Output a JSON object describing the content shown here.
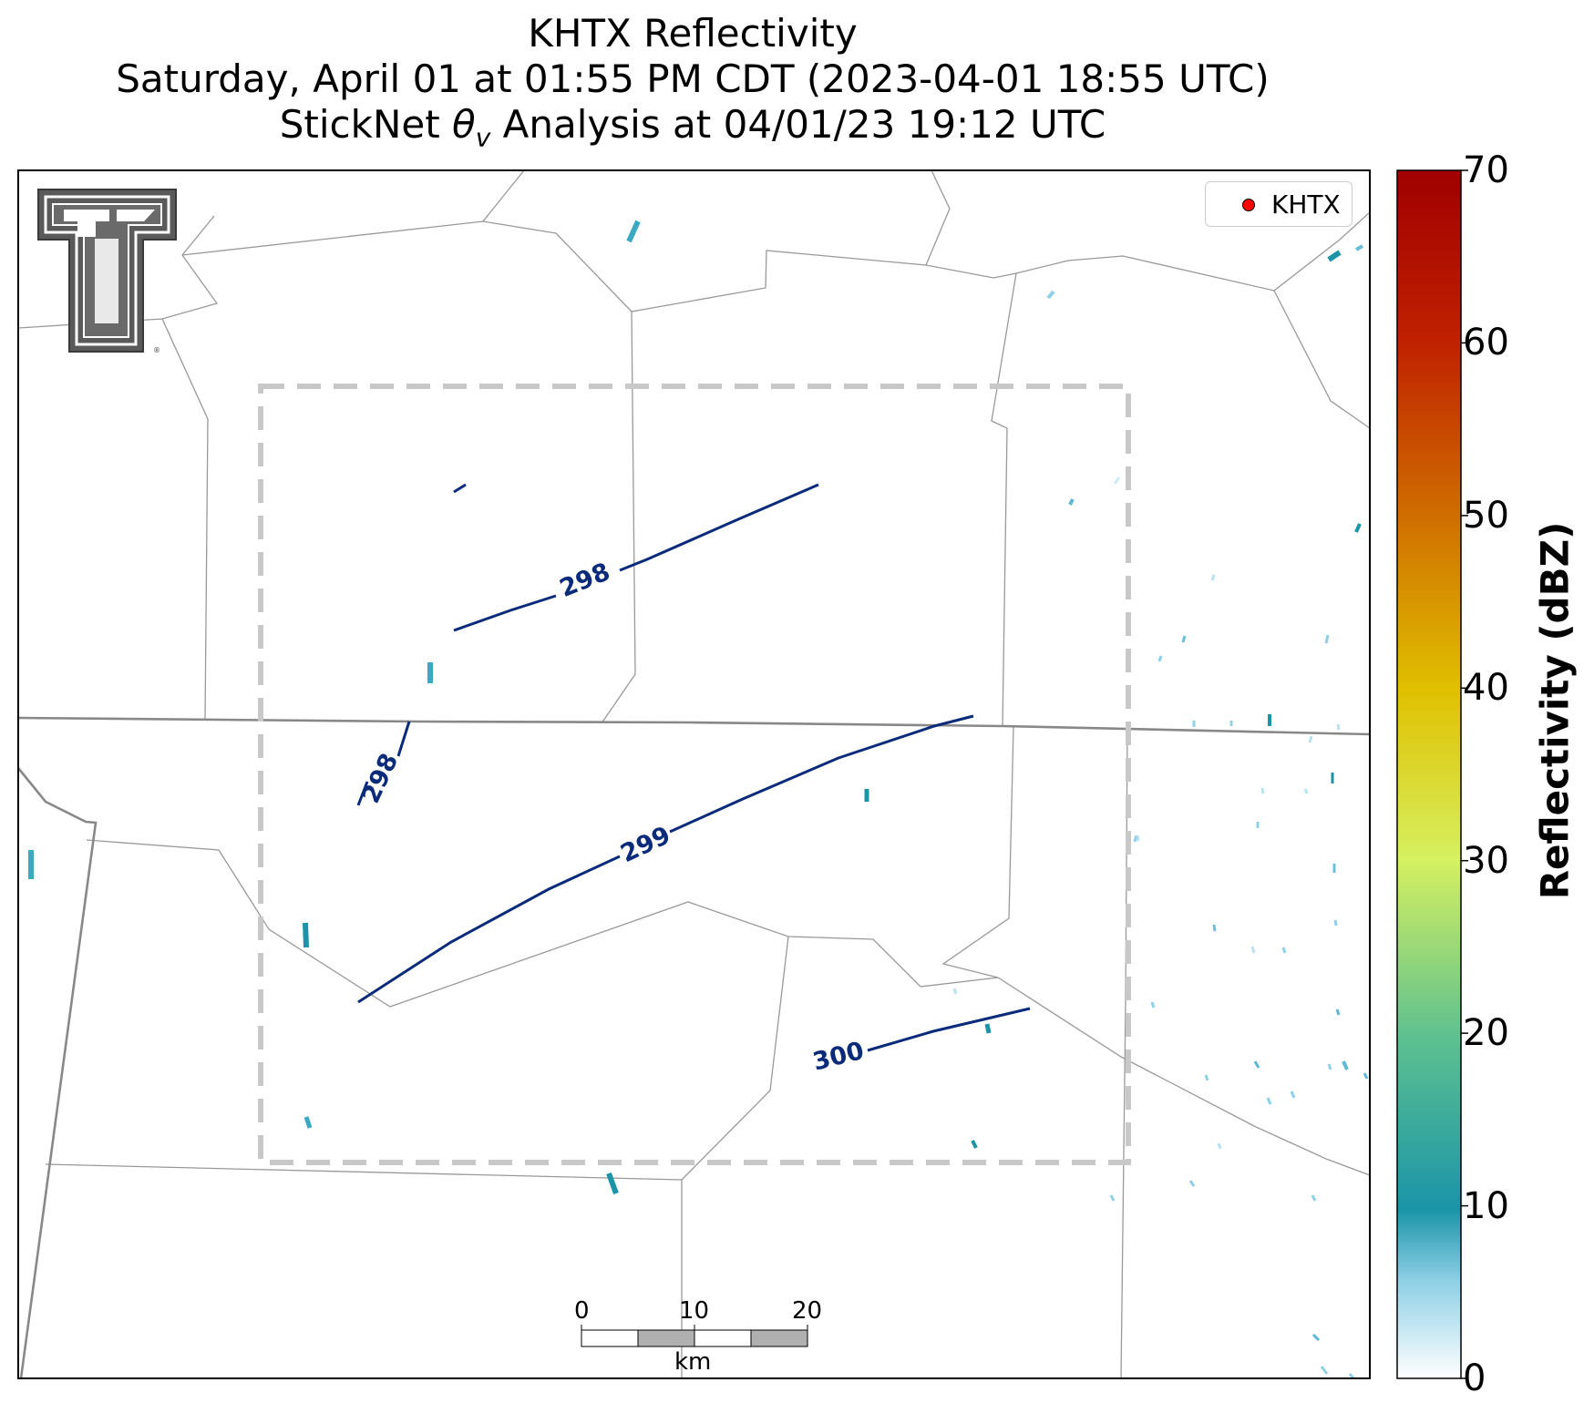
{
  "title": {
    "line1": "KHTX Reflectivity",
    "line2": "Saturday, April 01 at 01:55 PM CDT (2023-04-01 18:55 UTC)",
    "line3_prefix": "StickNet ",
    "line3_symbol": "θ",
    "line3_subscript": "v",
    "line3_suffix": " Analysis at 04/01/23 19:12 UTC"
  },
  "legend": {
    "marker_label": "KHTX",
    "marker_color": "#ff0000"
  },
  "colorbar": {
    "label": "Reflectivity (dBZ)",
    "ticks": [
      "0",
      "10",
      "20",
      "30",
      "40",
      "50",
      "60",
      "70"
    ],
    "min": 0,
    "max": 70,
    "colors": [
      "#ffffff",
      "#4aaed0",
      "#1b94a8",
      "#50b88c",
      "#d6f060",
      "#e0c000",
      "#d07000",
      "#c02000",
      "#a00000"
    ]
  },
  "contours": {
    "labels": [
      "298",
      "298",
      "299",
      "300"
    ],
    "color": "#0a2a7a"
  },
  "scalebar": {
    "ticks": [
      "0",
      "10",
      "20"
    ],
    "unit": "km"
  },
  "logo": {
    "text": "T",
    "name": "Texas Tech double-T logo"
  },
  "colors": {
    "analysis_box": "#c8c8c8",
    "county_lines": "#999999",
    "state_lines": "#888888"
  }
}
